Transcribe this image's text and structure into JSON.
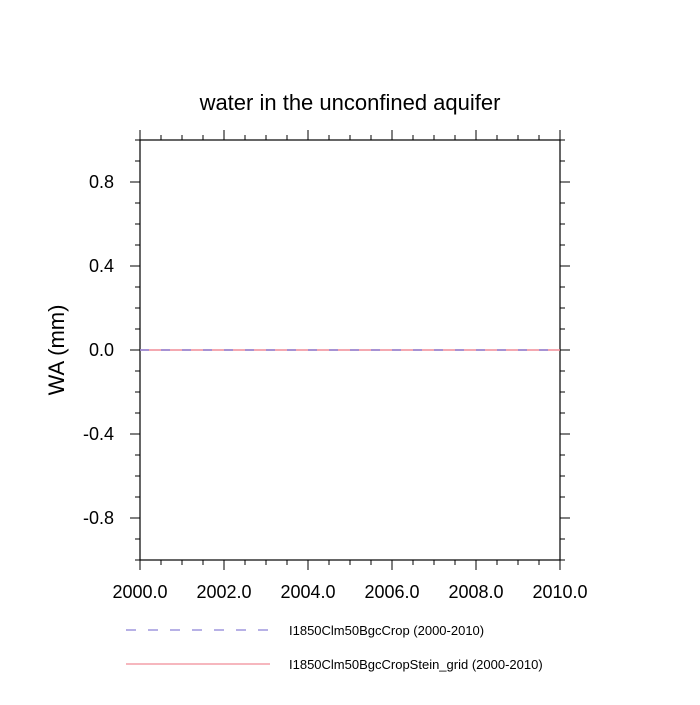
{
  "chart_data": {
    "type": "line",
    "title": "water in the unconfined aquifer",
    "xlabel": "",
    "ylabel": "WA  (mm)",
    "xlim": [
      2000.0,
      2010.0
    ],
    "ylim": [
      -1.0,
      1.0
    ],
    "x_major_ticks": [
      2000.0,
      2002.0,
      2004.0,
      2006.0,
      2008.0,
      2010.0
    ],
    "x_tick_labels": [
      "2000.0",
      "2002.0",
      "2004.0",
      "2006.0",
      "2008.0",
      "2010.0"
    ],
    "y_major_ticks": [
      -0.8,
      -0.4,
      0.0,
      0.4,
      0.8
    ],
    "y_tick_labels": [
      "-0.8",
      "-0.4",
      "0.0",
      "0.4",
      "0.8"
    ],
    "grid": false,
    "zero_line": true,
    "legend_position": "bottom",
    "series": [
      {
        "name": "I1850Clm50BgcCrop (2000-2010)",
        "color": "#8c82d6",
        "style": "dashed",
        "x": [
          2000.0,
          2010.0
        ],
        "y": [
          0.0,
          0.0
        ]
      },
      {
        "name": "I1850Clm50BgcCropStein_grid (2000-2010)",
        "color": "#f08c96",
        "style": "solid",
        "x": [
          2000.0,
          2010.0
        ],
        "y": [
          0.0,
          0.0
        ]
      }
    ]
  }
}
